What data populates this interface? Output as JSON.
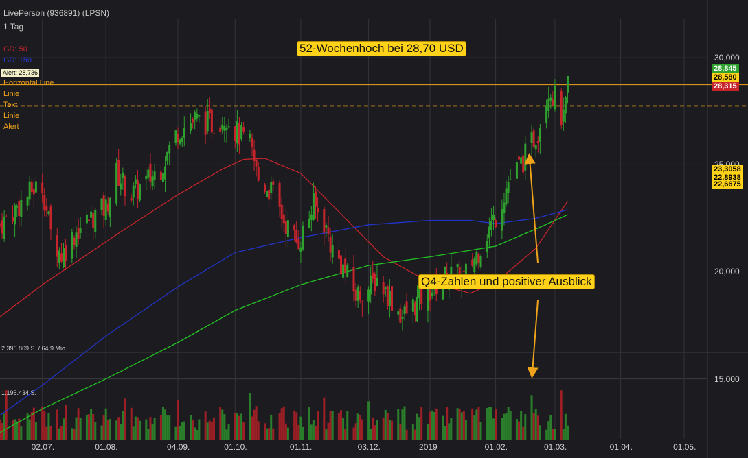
{
  "header": {
    "title": "LivePerson (936891) (LPSN)",
    "timeframe": "1 Tag"
  },
  "legend": {
    "gd50": "GD: 50",
    "gd150": "GD: 150",
    "alert_box": "Alert: 28,736",
    "drawings": [
      "Horizontal Line",
      "Linie",
      "Text",
      "Linie",
      "Alert"
    ]
  },
  "annotations": {
    "high": "52-Wochenhoch bei 28,70 USD",
    "earnings": "Q4-Zahlen und positiver Ausblick"
  },
  "volume_labels": {
    "top": "2.396.869 S. / 64,9 Mio.",
    "mid": "1.195.434 S."
  },
  "colors": {
    "background": "#1c1c20",
    "up": "#2fa12f",
    "down": "#c8242c",
    "gd50": "#c8242c",
    "gd150": "#2233cc",
    "gd200": "#22c422",
    "hline": "#f0a21a",
    "callout": "#ffd21a"
  },
  "chart_data": {
    "type": "line",
    "y_ticks": [
      "30,000",
      "25,000",
      "20,000",
      "15,000"
    ],
    "y_tick_values": [
      30,
      25,
      20,
      15
    ],
    "x_ticks": [
      "02.07.",
      "01.08.",
      "04.09.",
      "01.10.",
      "01.11.",
      "03.12.",
      "2019",
      "01.02.",
      "01.03.",
      "01.04.",
      "01.05."
    ],
    "x_tick_dates": [
      "2018-07-02",
      "2018-08-01",
      "2018-09-04",
      "2018-10-01",
      "2018-11-01",
      "2018-12-03",
      "2019-01-01",
      "2019-02-01",
      "2019-03-01",
      "2019-04-01",
      "2019-05-01"
    ],
    "ylim": [
      12.2,
      31.8
    ],
    "xlim": [
      "2018-06-12",
      "2019-05-12"
    ],
    "price_tags": [
      {
        "label": "28,845",
        "value": 28.845,
        "bg": "#2fa12f",
        "fg": "#ffffff"
      },
      {
        "label": "28,580",
        "value": 28.58,
        "bg": "#ffd21a",
        "fg": "#000000"
      },
      {
        "label": "28,315",
        "value": 28.315,
        "bg": "#c8242c",
        "fg": "#ffffff"
      },
      {
        "label": "23,3058",
        "value": 23.3058,
        "bg": "#ffd21a",
        "fg": "#000000"
      },
      {
        "label": "22,8938",
        "value": 22.8938,
        "bg": "#ffd21a",
        "fg": "#000000"
      },
      {
        "label": "22,6675",
        "value": 22.6675,
        "bg": "#ffd21a",
        "fg": "#000000"
      }
    ],
    "horizontal_lines": [
      {
        "name": "Alert",
        "value": 28.736,
        "style": "solid"
      },
      {
        "name": "Horizontal Line",
        "value": 27.75,
        "style": "dashed"
      }
    ],
    "close_series": [
      {
        "date": "2018-06-12",
        "value": 22.2
      },
      {
        "date": "2018-06-20",
        "value": 23.0
      },
      {
        "date": "2018-06-28",
        "value": 23.9
      },
      {
        "date": "2018-07-02",
        "value": 24.0
      },
      {
        "date": "2018-07-06",
        "value": 21.8
      },
      {
        "date": "2018-07-11",
        "value": 20.8
      },
      {
        "date": "2018-07-18",
        "value": 21.9
      },
      {
        "date": "2018-07-26",
        "value": 22.6
      },
      {
        "date": "2018-08-01",
        "value": 23.0
      },
      {
        "date": "2018-08-06",
        "value": 24.6
      },
      {
        "date": "2018-08-13",
        "value": 23.6
      },
      {
        "date": "2018-08-20",
        "value": 24.2
      },
      {
        "date": "2018-08-27",
        "value": 24.9
      },
      {
        "date": "2018-09-04",
        "value": 26.6
      },
      {
        "date": "2018-09-12",
        "value": 27.1
      },
      {
        "date": "2018-09-20",
        "value": 26.9
      },
      {
        "date": "2018-09-27",
        "value": 27.3
      },
      {
        "date": "2018-10-01",
        "value": 26.6
      },
      {
        "date": "2018-10-08",
        "value": 25.9
      },
      {
        "date": "2018-10-12",
        "value": 24.3
      },
      {
        "date": "2018-10-18",
        "value": 23.8
      },
      {
        "date": "2018-10-24",
        "value": 22.4
      },
      {
        "date": "2018-10-30",
        "value": 21.4
      },
      {
        "date": "2018-11-01",
        "value": 21.6
      },
      {
        "date": "2018-11-07",
        "value": 23.1
      },
      {
        "date": "2018-11-12",
        "value": 22.3
      },
      {
        "date": "2018-11-16",
        "value": 21.0
      },
      {
        "date": "2018-11-21",
        "value": 20.2
      },
      {
        "date": "2018-11-27",
        "value": 18.9
      },
      {
        "date": "2018-12-03",
        "value": 19.2
      },
      {
        "date": "2018-12-07",
        "value": 19.7
      },
      {
        "date": "2018-12-13",
        "value": 18.8
      },
      {
        "date": "2018-12-19",
        "value": 17.9
      },
      {
        "date": "2018-12-26",
        "value": 18.6
      },
      {
        "date": "2019-01-03",
        "value": 19.3
      },
      {
        "date": "2019-01-10",
        "value": 19.9
      },
      {
        "date": "2019-01-17",
        "value": 19.7
      },
      {
        "date": "2019-01-24",
        "value": 21.0
      },
      {
        "date": "2019-02-01",
        "value": 22.6
      },
      {
        "date": "2019-02-07",
        "value": 24.2
      },
      {
        "date": "2019-02-14",
        "value": 25.2
      },
      {
        "date": "2019-02-21",
        "value": 26.6
      },
      {
        "date": "2019-02-26",
        "value": 28.6
      },
      {
        "date": "2019-03-01",
        "value": 28.1
      },
      {
        "date": "2019-03-05",
        "value": 27.0
      },
      {
        "date": "2019-03-07",
        "value": 28.58
      }
    ],
    "series": [
      {
        "name": "GD: 50",
        "color": "#c8242c",
        "points": [
          {
            "date": "2018-06-12",
            "value": 17.9
          },
          {
            "date": "2018-07-02",
            "value": 19.4
          },
          {
            "date": "2018-07-20",
            "value": 20.6
          },
          {
            "date": "2018-08-10",
            "value": 22.0
          },
          {
            "date": "2018-09-04",
            "value": 23.6
          },
          {
            "date": "2018-09-25",
            "value": 24.8
          },
          {
            "date": "2018-10-05",
            "value": 25.25
          },
          {
            "date": "2018-10-15",
            "value": 25.3
          },
          {
            "date": "2018-11-01",
            "value": 24.6
          },
          {
            "date": "2018-11-20",
            "value": 22.7
          },
          {
            "date": "2018-12-10",
            "value": 20.7
          },
          {
            "date": "2019-01-01",
            "value": 19.5
          },
          {
            "date": "2019-01-20",
            "value": 19.0
          },
          {
            "date": "2019-02-01",
            "value": 19.5
          },
          {
            "date": "2019-02-20",
            "value": 21.1
          },
          {
            "date": "2019-03-07",
            "value": 23.3
          }
        ]
      },
      {
        "name": "GD: 150",
        "color": "#2233cc",
        "points": [
          {
            "date": "2018-06-12",
            "value": 13.3
          },
          {
            "date": "2018-07-02",
            "value": 14.7
          },
          {
            "date": "2018-08-01",
            "value": 17.0
          },
          {
            "date": "2018-09-04",
            "value": 19.3
          },
          {
            "date": "2018-10-01",
            "value": 20.9
          },
          {
            "date": "2018-11-01",
            "value": 21.6
          },
          {
            "date": "2018-12-03",
            "value": 22.2
          },
          {
            "date": "2019-01-01",
            "value": 22.4
          },
          {
            "date": "2019-01-20",
            "value": 22.4
          },
          {
            "date": "2019-02-01",
            "value": 22.25
          },
          {
            "date": "2019-02-20",
            "value": 22.5
          },
          {
            "date": "2019-03-07",
            "value": 22.9
          }
        ]
      },
      {
        "name": "",
        "color": "#22c422",
        "points": [
          {
            "date": "2018-06-12",
            "value": 12.5
          },
          {
            "date": "2018-07-02",
            "value": 13.6
          },
          {
            "date": "2018-08-01",
            "value": 15.0
          },
          {
            "date": "2018-09-04",
            "value": 16.7
          },
          {
            "date": "2018-10-01",
            "value": 18.2
          },
          {
            "date": "2018-11-01",
            "value": 19.4
          },
          {
            "date": "2018-12-03",
            "value": 20.3
          },
          {
            "date": "2019-01-01",
            "value": 20.7
          },
          {
            "date": "2019-02-01",
            "value": 21.2
          },
          {
            "date": "2019-02-20",
            "value": 22.0
          },
          {
            "date": "2019-03-07",
            "value": 22.67
          }
        ]
      }
    ]
  }
}
